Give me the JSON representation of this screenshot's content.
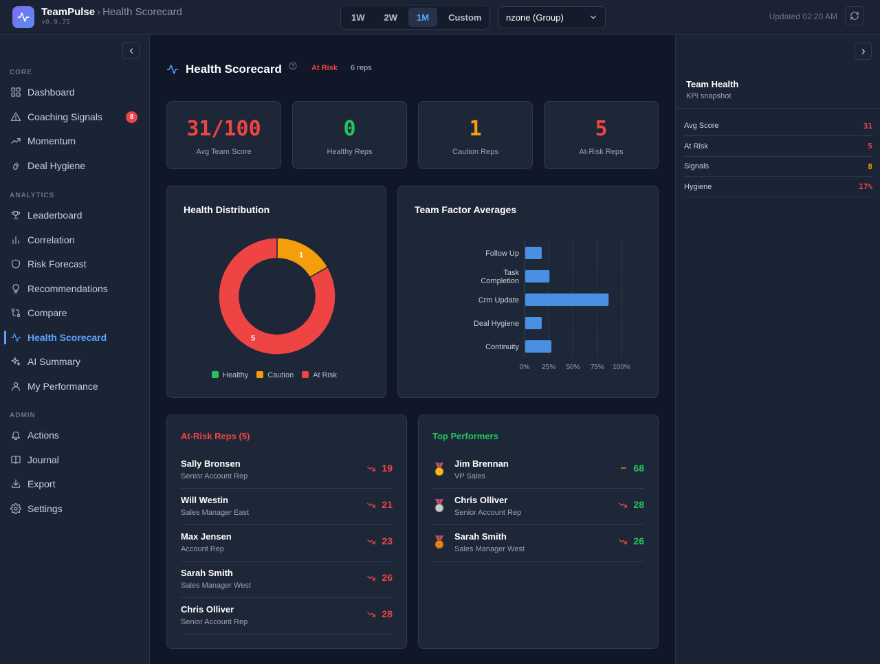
{
  "app": {
    "name": "TeamPulse",
    "breadcrumb_sep": "›",
    "page": "Health Scorecard",
    "version": "v0.9.75"
  },
  "header": {
    "ranges": [
      {
        "label": "1W",
        "active": false
      },
      {
        "label": "2W",
        "active": false
      },
      {
        "label": "1M",
        "active": true
      },
      {
        "label": "Custom",
        "active": false
      }
    ],
    "group_select": "nzone (Group)",
    "updated": "Updated 02:20 AM"
  },
  "sidebar": {
    "sections": [
      {
        "title": "CORE",
        "items": [
          {
            "label": "Dashboard",
            "icon": "grid-icon"
          },
          {
            "label": "Coaching Signals",
            "icon": "warning-icon",
            "badge": "8"
          },
          {
            "label": "Momentum",
            "icon": "trending-up-icon"
          },
          {
            "label": "Deal Hygiene",
            "icon": "droplets-icon"
          }
        ]
      },
      {
        "title": "ANALYTICS",
        "items": [
          {
            "label": "Leaderboard",
            "icon": "trophy-icon"
          },
          {
            "label": "Correlation",
            "icon": "bar-chart-icon"
          },
          {
            "label": "Risk Forecast",
            "icon": "shield-icon"
          },
          {
            "label": "Recommendations",
            "icon": "lightbulb-icon"
          },
          {
            "label": "Compare",
            "icon": "git-compare-icon"
          },
          {
            "label": "Health Scorecard",
            "icon": "activity-icon",
            "active": true
          },
          {
            "label": "AI Summary",
            "icon": "sparkles-icon"
          },
          {
            "label": "My Performance",
            "icon": "user-icon"
          }
        ]
      },
      {
        "title": "ADMIN",
        "items": [
          {
            "label": "Actions",
            "icon": "bell-icon"
          },
          {
            "label": "Journal",
            "icon": "book-icon"
          },
          {
            "label": "Export",
            "icon": "download-icon"
          },
          {
            "label": "Settings",
            "icon": "gear-icon"
          }
        ]
      }
    ]
  },
  "main": {
    "title": "Health Scorecard",
    "status": "At Risk",
    "rep_count": "6 reps",
    "kpis": [
      {
        "value": "31/100",
        "label": "Avg Team Score",
        "color": "#ef4444"
      },
      {
        "value": "0",
        "label": "Healthy Reps",
        "color": "#22c55e"
      },
      {
        "value": "1",
        "label": "Caution Reps",
        "color": "#f59e0b"
      },
      {
        "value": "5",
        "label": "At-Risk Reps",
        "color": "#ef4444"
      }
    ],
    "distribution": {
      "title": "Health Distribution",
      "legend": [
        "Healthy",
        "Caution",
        "At Risk"
      ]
    },
    "factors": {
      "title": "Team Factor Averages"
    },
    "at_risk": {
      "title": "At-Risk Reps (5)",
      "reps": [
        {
          "name": "Sally Bronsen",
          "role": "Senior Account Rep",
          "score": "19",
          "trend": "down"
        },
        {
          "name": "Will Westin",
          "role": "Sales Manager East",
          "score": "21",
          "trend": "down"
        },
        {
          "name": "Max Jensen",
          "role": "Account Rep",
          "score": "23",
          "trend": "down"
        },
        {
          "name": "Sarah Smith",
          "role": "Sales Manager West",
          "score": "26",
          "trend": "down"
        },
        {
          "name": "Chris Olliver",
          "role": "Senior Account Rep",
          "score": "28",
          "trend": "down"
        }
      ]
    },
    "top_performers": {
      "title": "Top Performers",
      "reps": [
        {
          "name": "Jim Brennan",
          "role": "VP Sales",
          "score": "68",
          "trend": "flat",
          "medal": "gold-medal-icon"
        },
        {
          "name": "Chris Olliver",
          "role": "Senior Account Rep",
          "score": "28",
          "trend": "down",
          "medal": "silver-medal-icon"
        },
        {
          "name": "Sarah Smith",
          "role": "Sales Manager West",
          "score": "26",
          "trend": "down",
          "medal": "bronze-medal-icon"
        }
      ]
    }
  },
  "right_panel": {
    "title": "Team Health",
    "subtitle": "KPI snapshot",
    "rows": [
      {
        "label": "Avg Score",
        "value": "31",
        "color": "#ef4444"
      },
      {
        "label": "At Risk",
        "value": "5",
        "color": "#ef4444"
      },
      {
        "label": "Signals",
        "value": "8",
        "color": "#f59e0b"
      },
      {
        "label": "Hygiene",
        "value": "17%",
        "color": "#ef4444"
      }
    ]
  },
  "chart_data": [
    {
      "type": "pie",
      "title": "Health Distribution",
      "categories": [
        "Healthy",
        "Caution",
        "At Risk"
      ],
      "values": [
        0,
        1,
        5
      ],
      "colors": [
        "#22c55e",
        "#f59e0b",
        "#ef4444"
      ],
      "donut": true,
      "legend": "bottom"
    },
    {
      "type": "bar",
      "orientation": "horizontal",
      "title": "Team Factor Averages",
      "categories": [
        "Follow Up",
        "Task Completion",
        "Crm Update",
        "Deal Hygiene",
        "Continuity"
      ],
      "values": [
        17,
        25,
        86,
        17,
        27
      ],
      "xlim": [
        0,
        100
      ],
      "xticks": [
        "0%",
        "25%",
        "50%",
        "75%",
        "100%"
      ],
      "grid": true,
      "color": "#4a90e2"
    }
  ]
}
